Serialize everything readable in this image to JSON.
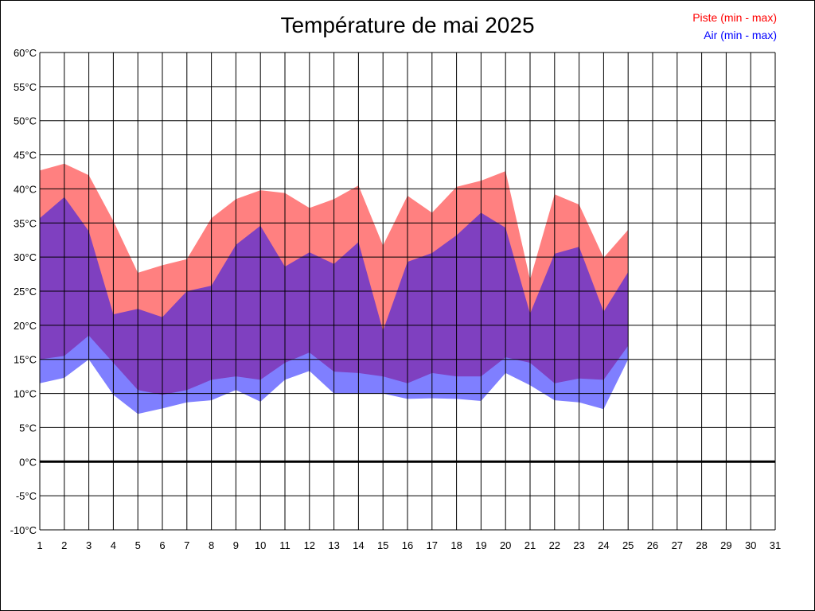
{
  "chart_data": {
    "type": "area",
    "title": "Température de mai 2025",
    "xlabel": "",
    "ylabel": "",
    "x": [
      1,
      2,
      3,
      4,
      5,
      6,
      7,
      8,
      9,
      10,
      11,
      12,
      13,
      14,
      15,
      16,
      17,
      18,
      19,
      20,
      21,
      22,
      23,
      24,
      25
    ],
    "x_ticks": [
      "1",
      "2",
      "3",
      "4",
      "5",
      "6",
      "7",
      "8",
      "9",
      "10",
      "11",
      "12",
      "13",
      "14",
      "15",
      "16",
      "17",
      "18",
      "19",
      "20",
      "21",
      "22",
      "23",
      "24",
      "25",
      "26",
      "27",
      "28",
      "29",
      "30",
      "31"
    ],
    "y_ticks": [
      "60°C",
      "55°C",
      "50°C",
      "45°C",
      "40°C",
      "35°C",
      "30°C",
      "25°C",
      "20°C",
      "15°C",
      "10°C",
      "5°C",
      "0°C",
      "-5°C",
      "-10°C"
    ],
    "xlim": [
      1,
      31
    ],
    "ylim": [
      -10,
      60
    ],
    "grid": true,
    "legend_position": "top-right",
    "series": [
      {
        "name": "Piste (min - max)",
        "color": "#ff8080",
        "min": [
          15.0,
          15.5,
          18.5,
          14.5,
          10.5,
          9.8,
          10.5,
          12.0,
          12.5,
          12.0,
          14.5,
          16.0,
          13.2,
          13.0,
          12.5,
          11.5,
          13.0,
          12.5,
          12.5,
          15.3,
          14.5,
          11.5,
          12.2,
          12.0,
          17.0
        ],
        "max": [
          42.7,
          43.7,
          42.0,
          35.3,
          27.7,
          28.8,
          29.7,
          35.7,
          38.5,
          39.8,
          39.4,
          37.2,
          38.5,
          40.5,
          31.7,
          39.0,
          36.5,
          40.3,
          41.2,
          42.6,
          26.7,
          39.2,
          37.7,
          29.9,
          34.0
        ]
      },
      {
        "name": "Air (min - max)",
        "color": "#8080ff",
        "min": [
          11.5,
          12.3,
          15.0,
          9.8,
          7.0,
          7.8,
          8.7,
          9.0,
          10.5,
          8.8,
          12.0,
          13.3,
          10.0,
          10.0,
          10.0,
          9.2,
          9.3,
          9.2,
          8.9,
          13.0,
          11.2,
          9.0,
          8.7,
          7.7,
          15.0
        ],
        "max": [
          35.7,
          38.8,
          33.8,
          21.6,
          22.4,
          21.2,
          25.0,
          25.8,
          31.8,
          34.6,
          28.6,
          30.7,
          29.0,
          32.2,
          19.2,
          29.3,
          30.6,
          33.2,
          36.5,
          34.3,
          21.7,
          30.5,
          31.5,
          22.0,
          27.8
        ]
      }
    ]
  }
}
